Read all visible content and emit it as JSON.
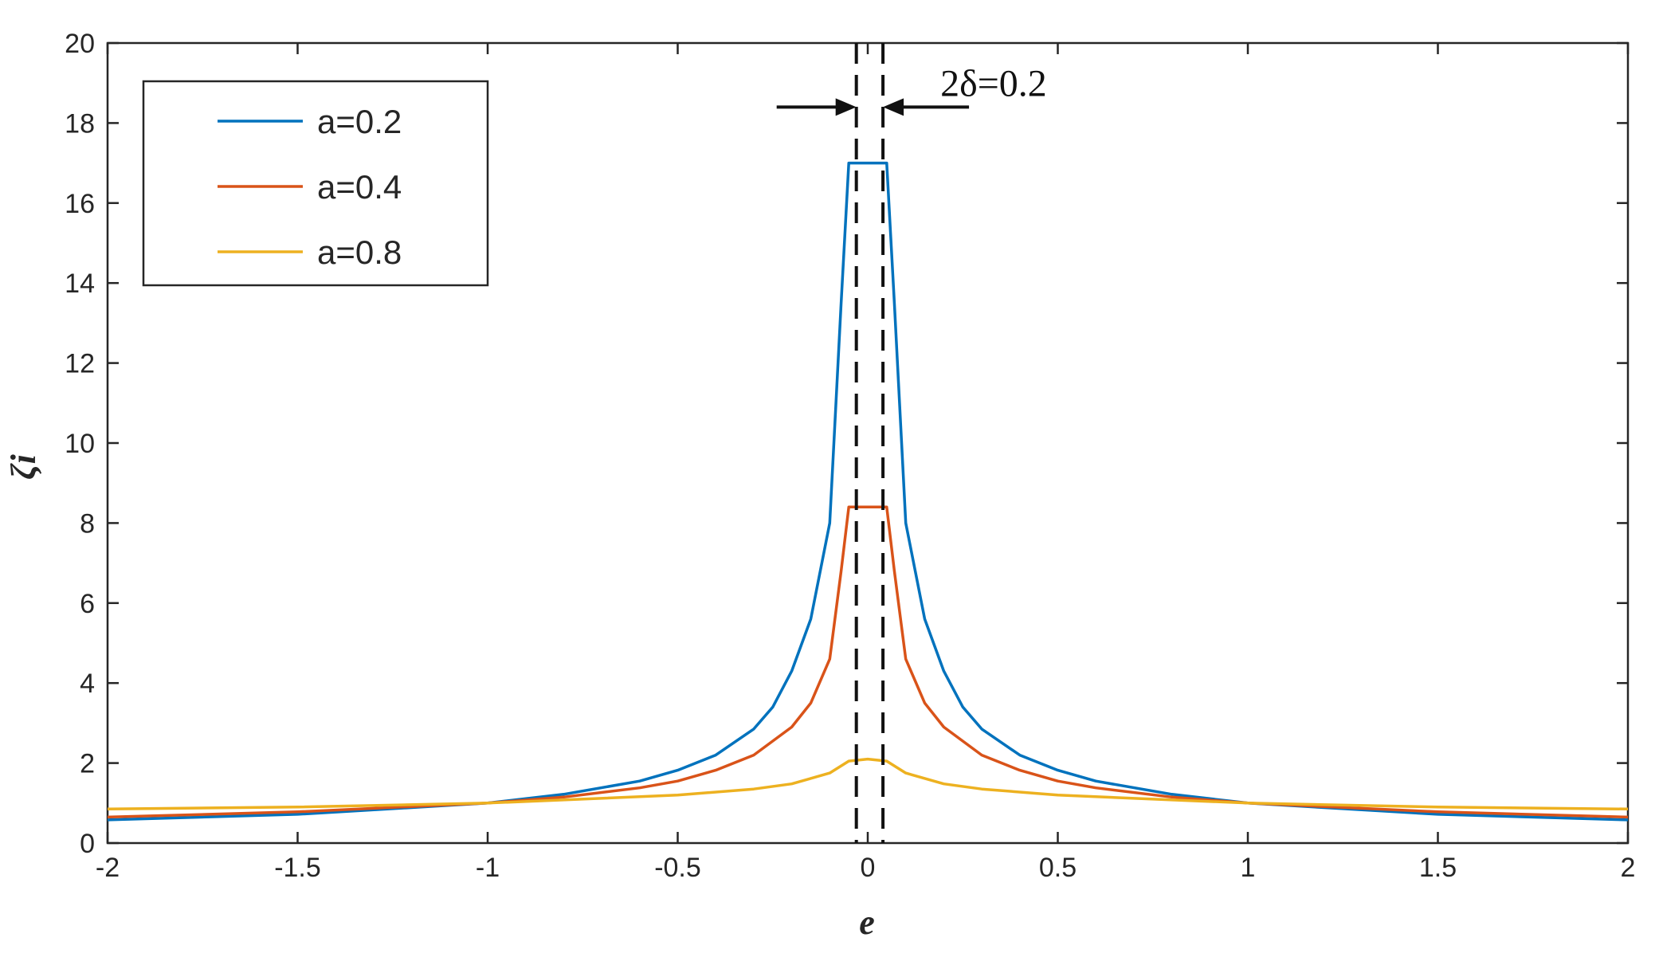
{
  "chart_data": {
    "type": "line",
    "title": "",
    "xlabel": "e",
    "ylabel": "ζi",
    "xlim": [
      -2,
      2
    ],
    "ylim": [
      0,
      20
    ],
    "xticks": [
      -2,
      -1.5,
      -1,
      -0.5,
      0,
      0.5,
      1,
      1.5,
      2
    ],
    "xtick_labels": [
      "-2",
      "-1.5",
      "-1",
      "-0.5",
      "0",
      "0.5",
      "1",
      "1.5",
      "2"
    ],
    "yticks": [
      0,
      2,
      4,
      6,
      8,
      10,
      12,
      14,
      16,
      18,
      20
    ],
    "ytick_labels": [
      "0",
      "2",
      "4",
      "6",
      "8",
      "10",
      "12",
      "14",
      "16",
      "18",
      "20"
    ],
    "grid": false,
    "legend_position": "top-left",
    "series": [
      {
        "name": "a=0.2",
        "color": "#0072BD",
        "x": [
          -2,
          -1.5,
          -1,
          -0.8,
          -0.6,
          -0.5,
          -0.4,
          -0.3,
          -0.25,
          -0.2,
          -0.15,
          -0.1,
          -0.07,
          -0.05,
          0,
          0.05,
          0.07,
          0.1,
          0.15,
          0.2,
          0.25,
          0.3,
          0.4,
          0.5,
          0.6,
          0.8,
          1,
          1.5,
          2
        ],
        "y": [
          0.58,
          0.72,
          1.0,
          1.22,
          1.55,
          1.82,
          2.2,
          2.85,
          3.4,
          4.3,
          5.6,
          8.0,
          13.5,
          17.0,
          17.0,
          17.0,
          13.5,
          8.0,
          5.6,
          4.3,
          3.4,
          2.85,
          2.2,
          1.82,
          1.55,
          1.22,
          1.0,
          0.72,
          0.58
        ]
      },
      {
        "name": "a=0.4",
        "color": "#D95319",
        "x": [
          -2,
          -1.5,
          -1,
          -0.8,
          -0.6,
          -0.5,
          -0.4,
          -0.3,
          -0.2,
          -0.15,
          -0.1,
          -0.07,
          -0.05,
          0,
          0.05,
          0.07,
          0.1,
          0.15,
          0.2,
          0.3,
          0.4,
          0.5,
          0.6,
          0.8,
          1,
          1.5,
          2
        ],
        "y": [
          0.65,
          0.78,
          1.0,
          1.15,
          1.38,
          1.55,
          1.82,
          2.2,
          2.9,
          3.5,
          4.6,
          6.8,
          8.4,
          8.4,
          8.4,
          6.8,
          4.6,
          3.5,
          2.9,
          2.2,
          1.82,
          1.55,
          1.38,
          1.15,
          1.0,
          0.78,
          0.65
        ]
      },
      {
        "name": "a=0.8",
        "color": "#EDB120",
        "x": [
          -2,
          -1.5,
          -1,
          -0.5,
          -0.3,
          -0.2,
          -0.1,
          -0.05,
          0,
          0.05,
          0.1,
          0.2,
          0.3,
          0.5,
          1,
          1.5,
          2
        ],
        "y": [
          0.85,
          0.9,
          1.0,
          1.2,
          1.35,
          1.48,
          1.75,
          2.05,
          2.1,
          2.05,
          1.75,
          1.48,
          1.35,
          1.2,
          1.0,
          0.9,
          0.85
        ]
      }
    ],
    "annotations": {
      "delta_label": "2δ=0.2",
      "dashed_lines_x": [
        -0.03,
        0.04
      ]
    }
  }
}
